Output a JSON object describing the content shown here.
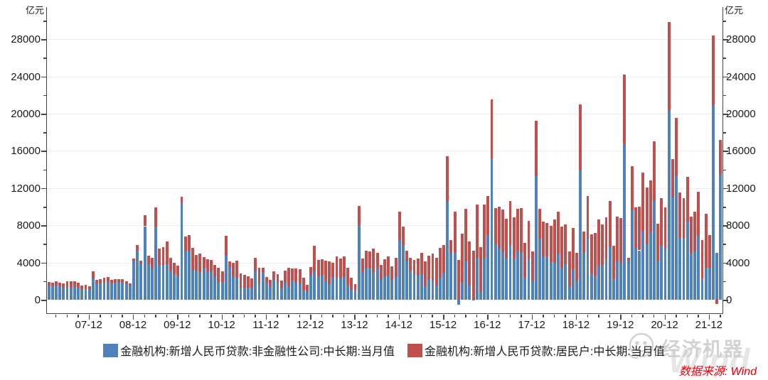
{
  "axes": {
    "y_left_unit": "亿元",
    "y_right_unit": "亿元",
    "y_major_ticks": [
      0,
      4000,
      8000,
      12000,
      16000,
      20000,
      24000,
      28000
    ],
    "y_minor_ticks": [
      2000,
      6000,
      10000,
      14000,
      18000,
      22000,
      26000,
      30000
    ],
    "x_tick_labels": [
      "07-12",
      "08-12",
      "09-12",
      "10-12",
      "11-12",
      "12-12",
      "13-12",
      "14-12",
      "15-12",
      "16-12",
      "17-12",
      "18-12",
      "19-12",
      "20-12",
      "21-12"
    ]
  },
  "legend": [
    {
      "label": "金融机构:新增人民币贷款:非金融性公司:中长期:当月值",
      "color": "#4F81BD"
    },
    {
      "label": "金融机构:新增人民币贷款:居民户:中长期:当月值",
      "color": "#C0504D"
    }
  ],
  "watermark": {
    "brand": "经济机器",
    "wind_text": "Wind",
    "logo_icon": "robot-face-icon"
  },
  "footer": {
    "source_text": "数据来源: Wind"
  },
  "chart_data": {
    "type": "bar",
    "stacked": true,
    "unit": "亿元",
    "grid": true,
    "legend_position": "bottom",
    "ylim": [
      -1450,
      31450
    ],
    "x": [
      "07-01",
      "07-02",
      "07-03",
      "07-04",
      "07-05",
      "07-06",
      "07-07",
      "07-08",
      "07-09",
      "07-10",
      "07-11",
      "07-12",
      "08-01",
      "08-02",
      "08-03",
      "08-04",
      "08-05",
      "08-06",
      "08-07",
      "08-08",
      "08-09",
      "08-10",
      "08-11",
      "08-12",
      "09-01",
      "09-02",
      "09-03",
      "09-04",
      "09-05",
      "09-06",
      "09-07",
      "09-08",
      "09-09",
      "09-10",
      "09-11",
      "09-12",
      "10-01",
      "10-02",
      "10-03",
      "10-04",
      "10-05",
      "10-06",
      "10-07",
      "10-08",
      "10-09",
      "10-10",
      "10-11",
      "10-12",
      "11-01",
      "11-02",
      "11-03",
      "11-04",
      "11-05",
      "11-06",
      "11-07",
      "11-08",
      "11-09",
      "11-10",
      "11-11",
      "11-12",
      "12-01",
      "12-02",
      "12-03",
      "12-04",
      "12-05",
      "12-06",
      "12-07",
      "12-08",
      "12-09",
      "12-10",
      "12-11",
      "12-12",
      "13-01",
      "13-02",
      "13-03",
      "13-04",
      "13-05",
      "13-06",
      "13-07",
      "13-08",
      "13-09",
      "13-10",
      "13-11",
      "13-12",
      "14-01",
      "14-02",
      "14-03",
      "14-04",
      "14-05",
      "14-06",
      "14-07",
      "14-08",
      "14-09",
      "14-10",
      "14-11",
      "14-12",
      "15-01",
      "15-02",
      "15-03",
      "15-04",
      "15-05",
      "15-06",
      "15-07",
      "15-08",
      "15-09",
      "15-10",
      "15-11",
      "15-12",
      "16-01",
      "16-02",
      "16-03",
      "16-04",
      "16-05",
      "16-06",
      "16-07",
      "16-08",
      "16-09",
      "16-10",
      "16-11",
      "16-12",
      "17-01",
      "17-02",
      "17-03",
      "17-04",
      "17-05",
      "17-06",
      "17-07",
      "17-08",
      "17-09",
      "17-10",
      "17-11",
      "17-12",
      "18-01",
      "18-02",
      "18-03",
      "18-04",
      "18-05",
      "18-06",
      "18-07",
      "18-08",
      "18-09",
      "18-10",
      "18-11",
      "18-12",
      "19-01",
      "19-02",
      "19-03",
      "19-04",
      "19-05",
      "19-06",
      "19-07",
      "19-08",
      "19-09",
      "19-10",
      "19-11",
      "19-12",
      "20-01",
      "20-02",
      "20-03",
      "20-04",
      "20-05",
      "20-06",
      "20-07",
      "20-08",
      "20-09",
      "20-10",
      "20-11",
      "20-12",
      "21-01",
      "21-02",
      "21-03",
      "21-04",
      "21-05",
      "21-06",
      "21-07",
      "21-08",
      "21-09",
      "21-10",
      "21-11",
      "21-12",
      "22-01",
      "22-02",
      "22-03"
    ],
    "series": [
      {
        "name": "金融机构:新增人民币贷款:非金融性公司:中长期:当月值",
        "color": "#4F81BD",
        "values": [
          1500,
          1450,
          1500,
          1400,
          1280,
          1350,
          1300,
          1350,
          1300,
          1100,
          1150,
          1100,
          2300,
          1700,
          1750,
          1800,
          1900,
          1750,
          1800,
          1850,
          1900,
          1700,
          1550,
          4200,
          5250,
          3800,
          7900,
          3820,
          3450,
          7850,
          3760,
          3660,
          3800,
          3080,
          2750,
          2520,
          10400,
          5200,
          5250,
          3200,
          3100,
          3000,
          3340,
          2970,
          3075,
          2440,
          1930,
          1830,
          4730,
          3500,
          2440,
          2310,
          1200,
          1300,
          1300,
          1250,
          3080,
          1680,
          2970,
          1800,
          1400,
          2100,
          1800,
          1250,
          1850,
          1450,
          2060,
          1800,
          1650,
          960,
          920,
          2700,
          3080,
          2440,
          2590,
          2060,
          1700,
          2440,
          2360,
          2280,
          2440,
          1600,
          1100,
          960,
          8030,
          2950,
          3360,
          3360,
          2980,
          3440,
          2130,
          2440,
          2590,
          2130,
          2440,
          6500,
          5857,
          4120,
          3070,
          2780,
          2600,
          2800,
          1417,
          2170,
          2000,
          1519,
          2300,
          2900,
          10600,
          5022,
          5078,
          -500,
          1825,
          4105,
          1514,
          -80,
          4466,
          728,
          4500,
          6954,
          15200,
          6018,
          5482,
          5226,
          4396,
          5778,
          4332,
          5300,
          5029,
          2366,
          4275,
          2059,
          13300,
          6585,
          4615,
          4668,
          4031,
          4001,
          4875,
          3425,
          3800,
          1429,
          3295,
          1976,
          14000,
          5127,
          6573,
          2823,
          2524,
          3753,
          3678,
          4285,
          5637,
          2216,
          4206,
          3978,
          16700,
          4157,
          9643,
          5547,
          5305,
          7348,
          5968,
          7252,
          10680,
          4113,
          5887,
          5500,
          20400,
          11000,
          13300,
          6605,
          6528,
          8367,
          4937,
          5215,
          6948,
          2190,
          3417,
          3393,
          21000,
          5052,
          13448
        ]
      },
      {
        "name": "金融机构:新增人民币贷款:居民户:中长期:当月值",
        "color": "#C0504D",
        "values": [
          400,
          420,
          450,
          430,
          470,
          600,
          700,
          650,
          500,
          420,
          450,
          350,
          750,
          420,
          500,
          550,
          520,
          420,
          420,
          400,
          320,
          260,
          220,
          260,
          600,
          380,
          1170,
          900,
          1050,
          2100,
          1740,
          2000,
          2450,
          1400,
          1220,
          1140,
          700,
          1600,
          1700,
          2400,
          1700,
          2000,
          1260,
          1380,
          1200,
          1300,
          1530,
          1240,
          2160,
          640,
          1530,
          1860,
          1650,
          1350,
          1200,
          1050,
          1440,
          1780,
          490,
          640,
          700,
          950,
          950,
          810,
          1300,
          2010,
          1320,
          1530,
          1630,
          1400,
          650,
          800,
          2750,
          1830,
          1760,
          2140,
          2400,
          1560,
          2300,
          2170,
          2240,
          1800,
          1300,
          720,
          2040,
          1450,
          1930,
          1830,
          2500,
          1590,
          1610,
          1900,
          2090,
          1430,
          2100,
          3000,
          1971,
          1120,
          1400,
          1500,
          1800,
          2260,
          2740,
          2590,
          2980,
          3000,
          3280,
          2940,
          4783,
          1421,
          4396,
          4280,
          5281,
          5639,
          4773,
          5286,
          5741,
          4891,
          5692,
          4217,
          6293,
          3804,
          4503,
          4441,
          4326,
          4833,
          4544,
          4470,
          4786,
          3710,
          4178,
          3112,
          5910,
          3220,
          3770,
          3543,
          3923,
          4634,
          4576,
          4415,
          4309,
          3730,
          4391,
          3079,
          6969,
          2226,
          4605,
          4165,
          4677,
          4858,
          4417,
          4540,
          4943,
          3587,
          4689,
          4824,
          7491,
          371,
          4738,
          4389,
          4662,
          6349,
          6067,
          5571,
          6362,
          4059,
          5049,
          4392,
          9448,
          4113,
          6239,
          4918,
          4426,
          4830,
          3974,
          4259,
          4667,
          4221,
          5821,
          3558,
          7424,
          -459,
          3735
        ]
      }
    ]
  }
}
